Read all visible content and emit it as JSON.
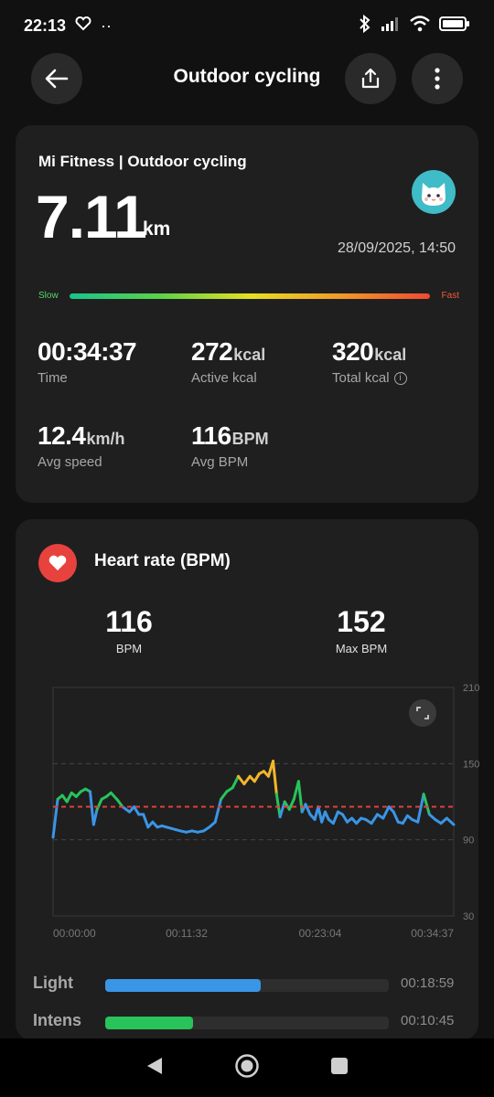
{
  "status": {
    "time": "22:13",
    "dots": "··"
  },
  "header": {
    "title": "Outdoor cycling"
  },
  "summary": {
    "source": "Mi Fitness | Outdoor cycling",
    "distance": "7.11",
    "distance_unit": "km",
    "datetime": "28/09/2025, 14:50",
    "slow_label": "Slow",
    "fast_label": "Fast",
    "stats": {
      "time": {
        "value": "00:34:37",
        "unit": "",
        "label": "Time"
      },
      "active": {
        "value": "272",
        "unit": "kcal",
        "label": "Active kcal"
      },
      "total": {
        "value": "320",
        "unit": "kcal",
        "label": "Total kcal"
      },
      "speed": {
        "value": "12.4",
        "unit": "km/h",
        "label": "Avg speed"
      },
      "bpm": {
        "value": "116",
        "unit": "BPM",
        "label": "Avg BPM"
      }
    }
  },
  "heart": {
    "title": "Heart rate (BPM)",
    "avg": {
      "value": "116",
      "label": "BPM"
    },
    "max": {
      "value": "152",
      "label": "Max BPM"
    }
  },
  "chart_data": {
    "type": "line",
    "ylim": [
      30,
      210
    ],
    "yticks": [
      "210",
      "150",
      "90",
      "30"
    ],
    "xticks": [
      "00:00:00",
      "00:11:32",
      "00:23:04",
      "00:34:37"
    ],
    "avg_line": 116,
    "zone_colors": {
      "light": "#3a95e6",
      "intensive": "#28c35a",
      "aerobic": "#f2b62b"
    },
    "x": [
      0,
      0.4,
      0.8,
      1.2,
      1.6,
      2.0,
      2.4,
      2.8,
      3.2,
      3.5,
      3.8,
      4.2,
      4.6,
      5.0,
      5.6,
      6.0,
      6.6,
      7.0,
      7.4,
      7.8,
      8.2,
      8.6,
      9.0,
      9.4,
      9.8,
      10.2,
      10.6,
      11.0,
      11.5,
      12.0,
      12.5,
      13.0,
      13.5,
      14.0,
      14.5,
      15.0,
      15.5,
      16.0,
      16.5,
      17.0,
      17.4,
      17.8,
      18.2,
      18.6,
      19.0,
      19.3,
      19.6,
      20.0,
      20.4,
      20.8,
      21.2,
      21.5,
      21.8,
      22.2,
      22.6,
      22.9,
      23.2,
      23.5,
      23.8,
      24.2,
      24.6,
      25.0,
      25.4,
      25.8,
      26.2,
      26.6,
      27.0,
      27.5,
      28.0,
      28.5,
      29.0,
      29.4,
      29.8,
      30.2,
      30.6,
      31.0,
      31.5,
      32.0,
      32.5,
      33.0,
      33.5,
      34.0,
      34.6
    ],
    "values": [
      92,
      122,
      125,
      120,
      127,
      124,
      128,
      130,
      128,
      102,
      114,
      122,
      124,
      127,
      121,
      116,
      112,
      116,
      110,
      110,
      100,
      104,
      100,
      101,
      100,
      99,
      98,
      97,
      96,
      97,
      96,
      97,
      100,
      104,
      122,
      128,
      131,
      140,
      134,
      140,
      136,
      142,
      144,
      140,
      152,
      126,
      108,
      120,
      114,
      122,
      136,
      112,
      118,
      110,
      106,
      116,
      104,
      112,
      106,
      103,
      112,
      110,
      104,
      107,
      103,
      107,
      106,
      103,
      110,
      107,
      116,
      112,
      104,
      103,
      109,
      106,
      104,
      126,
      110,
      106,
      103,
      107,
      102
    ]
  },
  "zones": [
    {
      "name": "Light",
      "time": "00:18:59",
      "fraction": 0.548,
      "color": "#3a95e6"
    },
    {
      "name": "Intens",
      "time": "00:10:45",
      "fraction": 0.31,
      "color": "#28c35a"
    }
  ]
}
